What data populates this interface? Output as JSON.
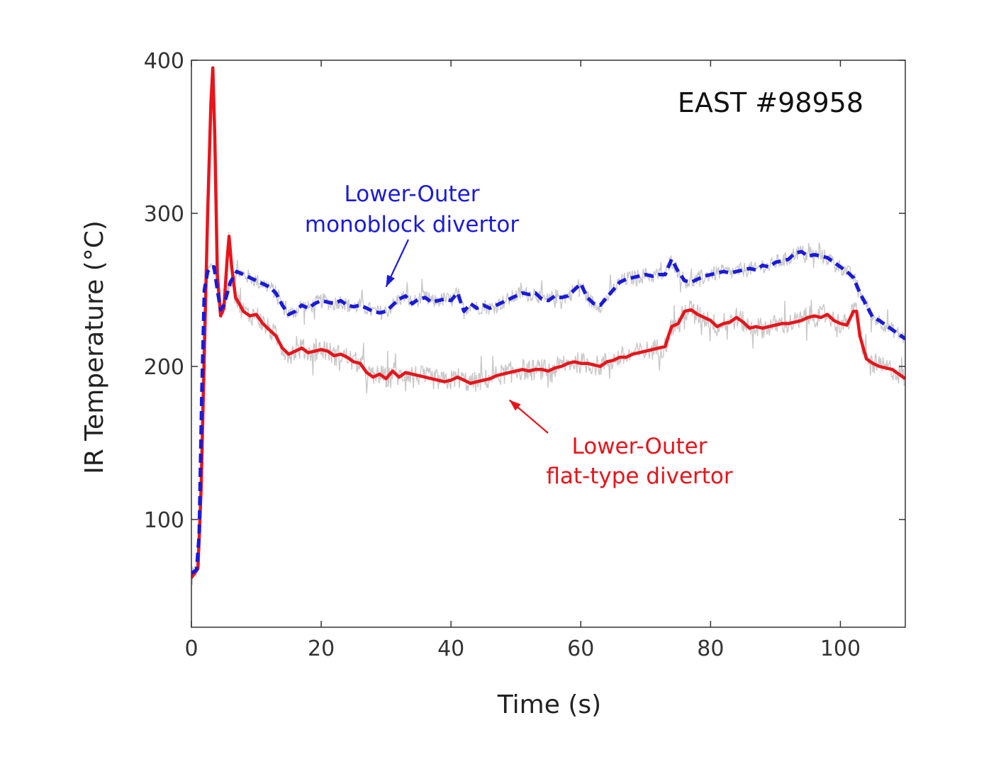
{
  "chart_data": {
    "type": "line",
    "title": "EAST #98958",
    "xlabel": "Time (s)",
    "ylabel": "IR Temperature (°C)",
    "xlim": [
      0,
      110
    ],
    "ylim": [
      30,
      400
    ],
    "xticks": [
      0,
      20,
      40,
      60,
      80,
      100
    ],
    "yticks": [
      100,
      200,
      300,
      400
    ],
    "grid": false,
    "series": [
      {
        "name": "Lower-Outer monoblock divertor",
        "color": "#1a1adc",
        "style": "dashed",
        "points": [
          [
            0,
            65
          ],
          [
            0.8,
            67
          ],
          [
            1.2,
            90
          ],
          [
            1.6,
            180
          ],
          [
            2,
            250
          ],
          [
            2.5,
            262
          ],
          [
            3,
            265
          ],
          [
            3.5,
            265
          ],
          [
            4,
            250
          ],
          [
            4.5,
            237
          ],
          [
            5,
            240
          ],
          [
            6,
            255
          ],
          [
            7,
            262
          ],
          [
            8,
            260
          ],
          [
            9,
            258
          ],
          [
            10,
            256
          ],
          [
            11,
            254
          ],
          [
            12,
            252
          ],
          [
            13,
            248
          ],
          [
            14,
            240
          ],
          [
            15,
            234
          ],
          [
            16,
            236
          ],
          [
            17,
            240
          ],
          [
            18,
            238
          ],
          [
            19,
            241
          ],
          [
            20,
            243
          ],
          [
            21,
            242
          ],
          [
            22,
            241
          ],
          [
            23,
            243
          ],
          [
            24,
            240
          ],
          [
            25,
            239
          ],
          [
            26,
            240
          ],
          [
            27,
            238
          ],
          [
            28,
            236
          ],
          [
            29,
            235
          ],
          [
            30,
            236
          ],
          [
            31,
            240
          ],
          [
            32,
            244
          ],
          [
            33,
            246
          ],
          [
            34,
            241
          ],
          [
            35,
            244
          ],
          [
            36,
            245
          ],
          [
            37,
            242
          ],
          [
            38,
            243
          ],
          [
            39,
            244
          ],
          [
            40,
            243
          ],
          [
            41,
            248
          ],
          [
            42,
            236
          ],
          [
            43,
            241
          ],
          [
            44,
            238
          ],
          [
            45,
            240
          ],
          [
            46,
            238
          ],
          [
            47,
            240
          ],
          [
            48,
            242
          ],
          [
            49,
            244
          ],
          [
            50,
            246
          ],
          [
            51,
            248
          ],
          [
            52,
            247
          ],
          [
            53,
            248
          ],
          [
            54,
            244
          ],
          [
            55,
            243
          ],
          [
            56,
            246
          ],
          [
            57,
            245
          ],
          [
            58,
            246
          ],
          [
            59,
            250
          ],
          [
            60,
            254
          ],
          [
            61,
            245
          ],
          [
            62,
            241
          ],
          [
            63,
            240
          ],
          [
            64,
            245
          ],
          [
            65,
            250
          ],
          [
            66,
            255
          ],
          [
            67,
            257
          ],
          [
            68,
            258
          ],
          [
            69,
            259
          ],
          [
            70,
            260
          ],
          [
            71,
            259
          ],
          [
            72,
            260
          ],
          [
            73,
            260
          ],
          [
            74,
            270
          ],
          [
            75,
            262
          ],
          [
            76,
            256
          ],
          [
            77,
            255
          ],
          [
            78,
            257
          ],
          [
            79,
            259
          ],
          [
            80,
            260
          ],
          [
            81,
            261
          ],
          [
            82,
            262
          ],
          [
            83,
            261
          ],
          [
            84,
            262
          ],
          [
            85,
            263
          ],
          [
            86,
            264
          ],
          [
            87,
            263
          ],
          [
            88,
            266
          ],
          [
            89,
            265
          ],
          [
            90,
            268
          ],
          [
            91,
            269
          ],
          [
            92,
            270
          ],
          [
            93,
            274
          ],
          [
            94,
            275
          ],
          [
            95,
            272
          ],
          [
            96,
            273
          ],
          [
            97,
            272
          ],
          [
            98,
            271
          ],
          [
            99,
            268
          ],
          [
            100,
            265
          ],
          [
            101,
            262
          ],
          [
            102,
            258
          ],
          [
            103,
            248
          ],
          [
            104,
            240
          ],
          [
            105,
            232
          ],
          [
            106,
            230
          ],
          [
            107,
            227
          ],
          [
            108,
            224
          ],
          [
            109,
            221
          ],
          [
            110,
            218
          ]
        ]
      },
      {
        "name": "Lower-Outer flat-type divertor",
        "color": "#e8141a",
        "style": "solid",
        "points": [
          [
            0,
            62
          ],
          [
            1,
            68
          ],
          [
            1.5,
            120
          ],
          [
            2,
            210
          ],
          [
            2.5,
            300
          ],
          [
            3,
            372
          ],
          [
            3.3,
            395
          ],
          [
            3.6,
            350
          ],
          [
            4,
            260
          ],
          [
            4.5,
            233
          ],
          [
            5,
            238
          ],
          [
            5.5,
            270
          ],
          [
            5.8,
            285
          ],
          [
            6.2,
            265
          ],
          [
            6.8,
            245
          ],
          [
            7.5,
            240
          ],
          [
            8,
            236
          ],
          [
            9,
            233
          ],
          [
            10,
            234
          ],
          [
            11,
            228
          ],
          [
            12,
            224
          ],
          [
            13,
            220
          ],
          [
            14,
            212
          ],
          [
            15,
            208
          ],
          [
            16,
            210
          ],
          [
            17,
            212
          ],
          [
            18,
            209
          ],
          [
            19,
            210
          ],
          [
            20,
            211
          ],
          [
            21,
            210
          ],
          [
            22,
            207
          ],
          [
            23,
            208
          ],
          [
            24,
            206
          ],
          [
            25,
            203
          ],
          [
            26,
            202
          ],
          [
            27,
            196
          ],
          [
            28,
            193
          ],
          [
            29,
            195
          ],
          [
            30,
            192
          ],
          [
            31,
            197
          ],
          [
            32,
            193
          ],
          [
            33,
            196
          ],
          [
            34,
            195
          ],
          [
            35,
            194
          ],
          [
            36,
            193
          ],
          [
            37,
            192
          ],
          [
            38,
            191
          ],
          [
            39,
            190
          ],
          [
            40,
            191
          ],
          [
            41,
            193
          ],
          [
            42,
            191
          ],
          [
            43,
            189
          ],
          [
            44,
            190
          ],
          [
            45,
            191
          ],
          [
            46,
            192
          ],
          [
            47,
            194
          ],
          [
            48,
            195
          ],
          [
            49,
            196
          ],
          [
            50,
            197
          ],
          [
            51,
            198
          ],
          [
            52,
            197
          ],
          [
            53,
            198
          ],
          [
            54,
            198
          ],
          [
            55,
            197
          ],
          [
            56,
            199
          ],
          [
            57,
            200
          ],
          [
            58,
            202
          ],
          [
            59,
            203
          ],
          [
            60,
            202
          ],
          [
            61,
            202
          ],
          [
            62,
            201
          ],
          [
            63,
            200
          ],
          [
            64,
            203
          ],
          [
            65,
            204
          ],
          [
            66,
            206
          ],
          [
            67,
            206
          ],
          [
            68,
            208
          ],
          [
            69,
            209
          ],
          [
            70,
            210
          ],
          [
            71,
            211
          ],
          [
            72,
            212
          ],
          [
            73,
            213
          ],
          [
            73.5,
            220
          ],
          [
            74,
            226
          ],
          [
            75,
            228
          ],
          [
            76,
            236
          ],
          [
            77,
            237
          ],
          [
            78,
            234
          ],
          [
            79,
            232
          ],
          [
            80,
            230
          ],
          [
            81,
            226
          ],
          [
            82,
            228
          ],
          [
            83,
            229
          ],
          [
            84,
            232
          ],
          [
            85,
            229
          ],
          [
            86,
            225
          ],
          [
            87,
            226
          ],
          [
            88,
            225
          ],
          [
            89,
            226
          ],
          [
            90,
            227
          ],
          [
            91,
            228
          ],
          [
            92,
            228
          ],
          [
            93,
            229
          ],
          [
            94,
            230
          ],
          [
            95,
            232
          ],
          [
            96,
            233
          ],
          [
            97,
            232
          ],
          [
            98,
            234
          ],
          [
            99,
            230
          ],
          [
            100,
            228
          ],
          [
            101,
            227
          ],
          [
            102,
            236
          ],
          [
            102.5,
            236
          ],
          [
            103,
            220
          ],
          [
            104,
            205
          ],
          [
            105,
            202
          ],
          [
            106,
            200
          ],
          [
            107,
            199
          ],
          [
            108,
            198
          ],
          [
            109,
            195
          ],
          [
            110,
            192
          ]
        ]
      }
    ],
    "annotations": [
      {
        "lines": [
          "Lower-Outer",
          "monoblock divertor"
        ],
        "color": "#1a1adc",
        "anchor": [
          30,
          252
        ]
      },
      {
        "lines": [
          "Lower-Outer",
          "flat-type divertor"
        ],
        "color": "#e8141a",
        "anchor": [
          49,
          178
        ]
      }
    ],
    "raw_signal_color": "#c8c8c8"
  }
}
